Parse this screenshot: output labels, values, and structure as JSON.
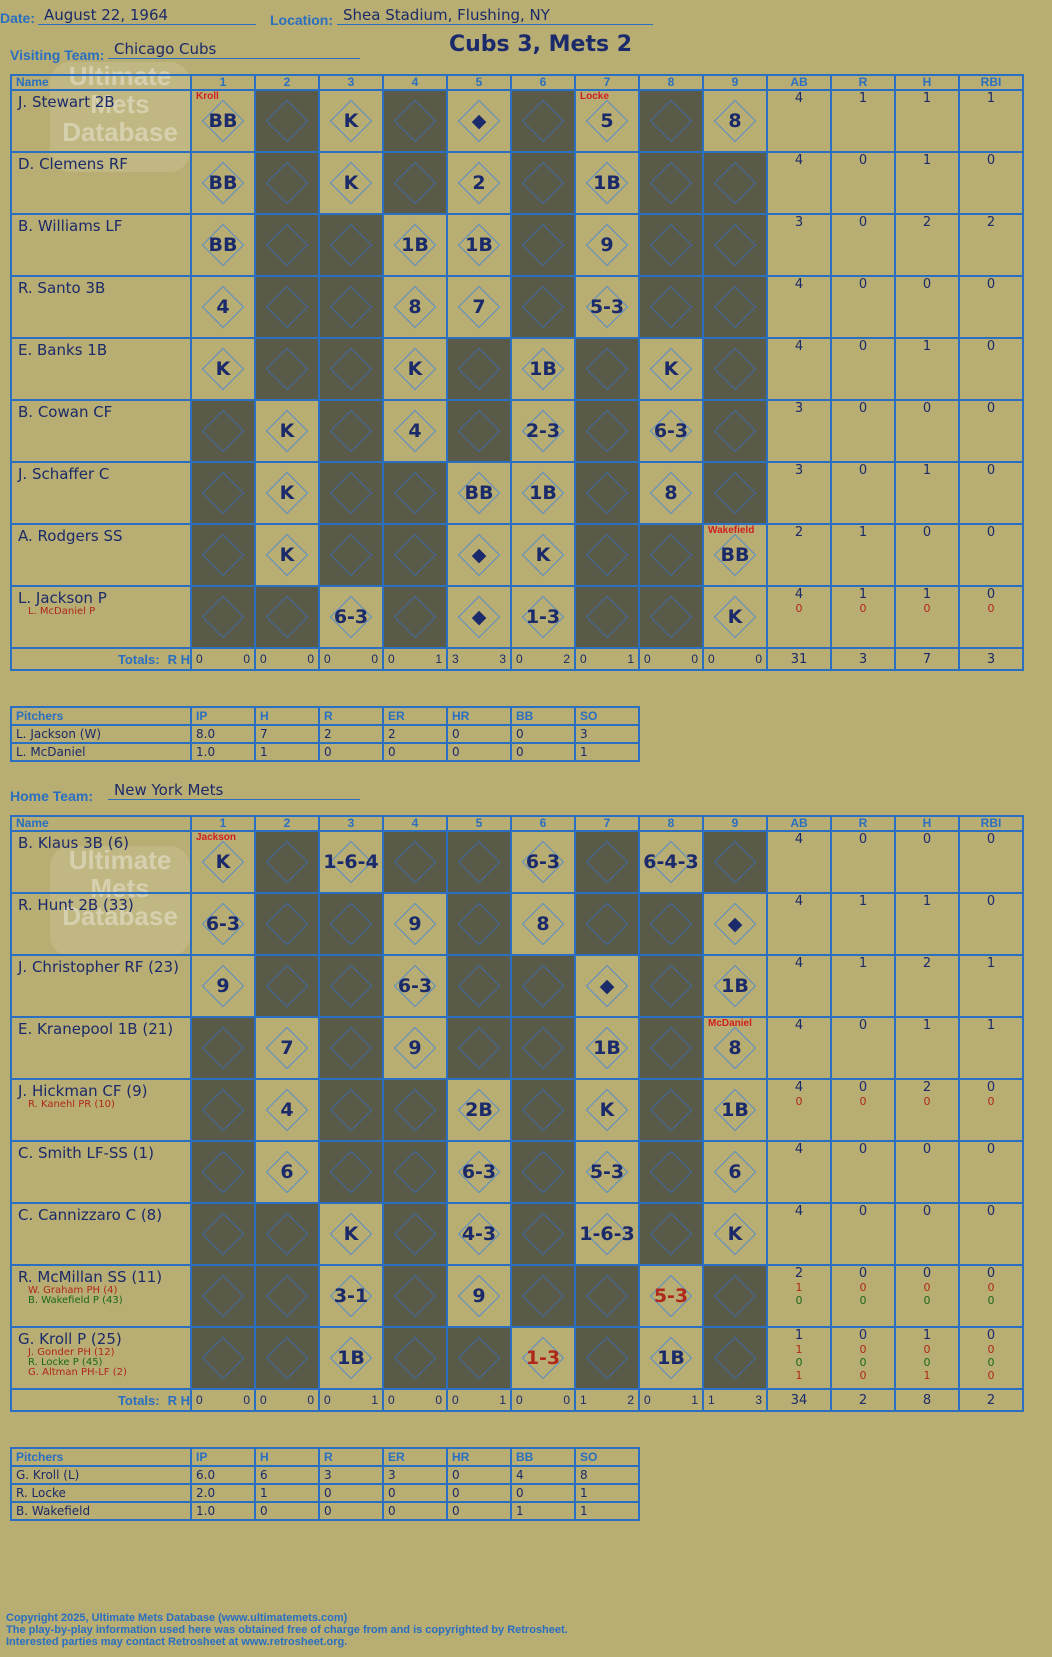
{
  "header": {
    "date_label": "Date:",
    "date": "August 22, 1964",
    "location_label": "Location:",
    "location": "Shea Stadium, Flushing, NY",
    "title": "Cubs 3, Mets 2"
  },
  "visitors": {
    "team_label": "Visiting Team:",
    "team": "Chicago Cubs",
    "columns": [
      "Name",
      "1",
      "2",
      "3",
      "4",
      "5",
      "6",
      "7",
      "8",
      "9",
      "AB",
      "R",
      "H",
      "RBI"
    ],
    "rows": [
      {
        "name": "J. Stewart 2B",
        "subs": [],
        "cells": [
          [
            "BB",
            0,
            "Kroll"
          ],
          [
            "",
            1
          ],
          [
            "K",
            0
          ],
          [
            "",
            1
          ],
          [
            "◆",
            0
          ],
          [
            "",
            1
          ],
          [
            "5",
            0,
            "Locke"
          ],
          [
            "",
            1
          ],
          [
            "8",
            0
          ]
        ],
        "ab": "4",
        "r": "1",
        "h": "1",
        "rbi": "1"
      },
      {
        "name": "D. Clemens RF",
        "subs": [],
        "cells": [
          [
            "BB",
            0
          ],
          [
            "",
            1
          ],
          [
            "K",
            0
          ],
          [
            "",
            1
          ],
          [
            "2",
            0
          ],
          [
            "",
            1
          ],
          [
            "1B",
            0
          ],
          [
            "",
            1
          ],
          [
            "",
            1
          ]
        ],
        "ab": "4",
        "r": "0",
        "h": "1",
        "rbi": "0"
      },
      {
        "name": "B. Williams LF",
        "subs": [],
        "cells": [
          [
            "BB",
            0
          ],
          [
            "",
            1
          ],
          [
            "",
            1
          ],
          [
            "1B",
            0
          ],
          [
            "1B",
            0
          ],
          [
            "",
            1
          ],
          [
            "9",
            0
          ],
          [
            "",
            1
          ],
          [
            "",
            1
          ]
        ],
        "ab": "3",
        "r": "0",
        "h": "2",
        "rbi": "2"
      },
      {
        "name": "R. Santo 3B",
        "subs": [],
        "cells": [
          [
            "4",
            0
          ],
          [
            "",
            1
          ],
          [
            "",
            1
          ],
          [
            "8",
            0
          ],
          [
            "7",
            0
          ],
          [
            "",
            1
          ],
          [
            "5-3",
            0
          ],
          [
            "",
            1
          ],
          [
            "",
            1
          ]
        ],
        "ab": "4",
        "r": "0",
        "h": "0",
        "rbi": "0"
      },
      {
        "name": "E. Banks 1B",
        "subs": [],
        "cells": [
          [
            "K",
            0
          ],
          [
            "",
            1
          ],
          [
            "",
            1
          ],
          [
            "K",
            0
          ],
          [
            "",
            1
          ],
          [
            "1B",
            0
          ],
          [
            "",
            1
          ],
          [
            "K",
            0
          ],
          [
            "",
            1
          ]
        ],
        "ab": "4",
        "r": "0",
        "h": "1",
        "rbi": "0"
      },
      {
        "name": "B. Cowan CF",
        "subs": [],
        "cells": [
          [
            "",
            1
          ],
          [
            "K",
            0
          ],
          [
            "",
            1
          ],
          [
            "4",
            0
          ],
          [
            "",
            1
          ],
          [
            "2-3",
            0
          ],
          [
            "",
            1
          ],
          [
            "6-3",
            0
          ],
          [
            "",
            1
          ]
        ],
        "ab": "3",
        "r": "0",
        "h": "0",
        "rbi": "0"
      },
      {
        "name": "J. Schaffer C",
        "subs": [],
        "cells": [
          [
            "",
            1
          ],
          [
            "K",
            0
          ],
          [
            "",
            1
          ],
          [
            "",
            1
          ],
          [
            "BB",
            0
          ],
          [
            "1B",
            0
          ],
          [
            "",
            1
          ],
          [
            "8",
            0
          ],
          [
            "",
            1
          ]
        ],
        "ab": "3",
        "r": "0",
        "h": "1",
        "rbi": "0"
      },
      {
        "name": "A. Rodgers SS",
        "subs": [],
        "cells": [
          [
            "",
            1
          ],
          [
            "K",
            0
          ],
          [
            "",
            1
          ],
          [
            "",
            1
          ],
          [
            "◆",
            0
          ],
          [
            "K",
            0
          ],
          [
            "",
            1
          ],
          [
            "",
            1
          ],
          [
            "BB",
            0,
            "Wakefield"
          ]
        ],
        "ab": "2",
        "r": "1",
        "h": "0",
        "rbi": "0"
      },
      {
        "name": "L. Jackson P",
        "subs": [
          {
            "name": "L. McDaniel P",
            "ab": "0",
            "r": "0",
            "h": "0",
            "rbi": "0",
            "c": "red"
          }
        ],
        "cells": [
          [
            "",
            1
          ],
          [
            "",
            1
          ],
          [
            "6-3",
            0
          ],
          [
            "",
            1
          ],
          [
            "◆",
            0
          ],
          [
            "1-3",
            0
          ],
          [
            "",
            1
          ],
          [
            "",
            1
          ],
          [
            "K",
            0
          ]
        ],
        "ab": "4",
        "r": "1",
        "h": "1",
        "rbi": "0"
      }
    ],
    "totals_label": "Totals:",
    "totals_rh": "R      H",
    "totals": [
      [
        "0",
        "0"
      ],
      [
        "0",
        "0"
      ],
      [
        "0",
        "0"
      ],
      [
        "0",
        "1"
      ],
      [
        "3",
        "3"
      ],
      [
        "0",
        "2"
      ],
      [
        "0",
        "1"
      ],
      [
        "0",
        "0"
      ],
      [
        "0",
        "0"
      ]
    ],
    "totals_stats": [
      "31",
      "3",
      "7",
      "3"
    ],
    "pitchers_header": [
      "Pitchers",
      "IP",
      "H",
      "R",
      "ER",
      "HR",
      "BB",
      "SO"
    ],
    "pitchers": [
      [
        "L. Jackson (W)",
        "8.0",
        "7",
        "2",
        "2",
        "0",
        "0",
        "3"
      ],
      [
        "L. McDaniel",
        "1.0",
        "1",
        "0",
        "0",
        "0",
        "0",
        "1"
      ]
    ]
  },
  "home": {
    "team_label": "Home Team:",
    "team": "New York Mets",
    "columns": [
      "Name",
      "1",
      "2",
      "3",
      "4",
      "5",
      "6",
      "7",
      "8",
      "9",
      "AB",
      "R",
      "H",
      "RBI"
    ],
    "rows": [
      {
        "name": "B. Klaus 3B (6)",
        "subs": [],
        "cells": [
          [
            "K",
            0,
            "Jackson"
          ],
          [
            "",
            1
          ],
          [
            "1-6-4",
            0
          ],
          [
            "",
            1
          ],
          [
            "",
            1
          ],
          [
            "6-3",
            0
          ],
          [
            "",
            1
          ],
          [
            "6-4-3",
            0
          ],
          [
            "",
            1
          ]
        ],
        "ab": "4",
        "r": "0",
        "h": "0",
        "rbi": "0"
      },
      {
        "name": "R. Hunt 2B (33)",
        "subs": [],
        "cells": [
          [
            "6-3",
            0
          ],
          [
            "",
            1
          ],
          [
            "",
            1
          ],
          [
            "9",
            0
          ],
          [
            "",
            1
          ],
          [
            "8",
            0
          ],
          [
            "",
            1
          ],
          [
            "",
            1
          ],
          [
            "◆",
            0
          ]
        ],
        "ab": "4",
        "r": "1",
        "h": "1",
        "rbi": "0"
      },
      {
        "name": "J. Christopher RF (23)",
        "subs": [],
        "cells": [
          [
            "9",
            0
          ],
          [
            "",
            1
          ],
          [
            "",
            1
          ],
          [
            "6-3",
            0
          ],
          [
            "",
            1
          ],
          [
            "",
            1
          ],
          [
            "◆",
            0
          ],
          [
            "",
            1
          ],
          [
            "1B",
            0
          ]
        ],
        "ab": "4",
        "r": "1",
        "h": "2",
        "rbi": "1"
      },
      {
        "name": "E. Kranepool 1B (21)",
        "subs": [],
        "cells": [
          [
            "",
            1
          ],
          [
            "7",
            0
          ],
          [
            "",
            1
          ],
          [
            "9",
            0
          ],
          [
            "",
            1
          ],
          [
            "",
            1
          ],
          [
            "1B",
            0
          ],
          [
            "",
            1
          ],
          [
            "8",
            0,
            "McDaniel"
          ]
        ],
        "ab": "4",
        "r": "0",
        "h": "1",
        "rbi": "1"
      },
      {
        "name": "J. Hickman CF (9)",
        "subs": [
          {
            "name": "R. Kanehl PR (10)",
            "ab": "0",
            "r": "0",
            "h": "0",
            "rbi": "0",
            "c": "red"
          }
        ],
        "cells": [
          [
            "",
            1
          ],
          [
            "4",
            0
          ],
          [
            "",
            1
          ],
          [
            "",
            1
          ],
          [
            "2B",
            0
          ],
          [
            "",
            1
          ],
          [
            "K",
            0
          ],
          [
            "",
            1
          ],
          [
            "1B",
            0
          ]
        ],
        "ab": "4",
        "r": "0",
        "h": "2",
        "rbi": "0"
      },
      {
        "name": "C. Smith LF-SS (1)",
        "subs": [],
        "cells": [
          [
            "",
            1
          ],
          [
            "6",
            0
          ],
          [
            "",
            1
          ],
          [
            "",
            1
          ],
          [
            "6-3",
            0
          ],
          [
            "",
            1
          ],
          [
            "5-3",
            0
          ],
          [
            "",
            1
          ],
          [
            "6",
            0
          ]
        ],
        "ab": "4",
        "r": "0",
        "h": "0",
        "rbi": "0"
      },
      {
        "name": "C. Cannizzaro C (8)",
        "subs": [],
        "cells": [
          [
            "",
            1
          ],
          [
            "",
            1
          ],
          [
            "K",
            0
          ],
          [
            "",
            1
          ],
          [
            "4-3",
            0
          ],
          [
            "",
            1
          ],
          [
            "1-6-3",
            0
          ],
          [
            "",
            1
          ],
          [
            "K",
            0
          ]
        ],
        "ab": "4",
        "r": "0",
        "h": "0",
        "rbi": "0"
      },
      {
        "name": "R. McMillan SS (11)",
        "subs": [
          {
            "name": "W. Graham PH (4)",
            "ab": "1",
            "r": "0",
            "h": "0",
            "rbi": "0",
            "c": "red"
          },
          {
            "name": "B. Wakefield P (43)",
            "ab": "0",
            "r": "0",
            "h": "0",
            "rbi": "0",
            "c": "grn"
          }
        ],
        "cells": [
          [
            "",
            1
          ],
          [
            "",
            1
          ],
          [
            "3-1",
            0
          ],
          [
            "",
            1
          ],
          [
            "9",
            0
          ],
          [
            "",
            1
          ],
          [
            "",
            1
          ],
          [
            "5-3",
            0,
            null,
            "red"
          ],
          [
            "",
            1
          ]
        ],
        "ab": "2",
        "r": "0",
        "h": "0",
        "rbi": "0"
      },
      {
        "name": "G. Kroll P (25)",
        "subs": [
          {
            "name": "J. Gonder PH (12)",
            "ab": "1",
            "r": "0",
            "h": "0",
            "rbi": "0",
            "c": "red"
          },
          {
            "name": "R. Locke P (45)",
            "ab": "0",
            "r": "0",
            "h": "0",
            "rbi": "0",
            "c": "grn"
          },
          {
            "name": "G. Altman PH-LF (2)",
            "ab": "1",
            "r": "0",
            "h": "1",
            "rbi": "0",
            "c": "red"
          }
        ],
        "cells": [
          [
            "",
            1
          ],
          [
            "",
            1
          ],
          [
            "1B",
            0
          ],
          [
            "",
            1
          ],
          [
            "",
            1
          ],
          [
            "1-3",
            0,
            null,
            "red"
          ],
          [
            "",
            1
          ],
          [
            "1B",
            0
          ],
          [
            "",
            1
          ]
        ],
        "ab": "1",
        "r": "0",
        "h": "1",
        "rbi": "0"
      }
    ],
    "totals_label": "Totals:",
    "totals_rh": "R      H",
    "totals": [
      [
        "0",
        "0"
      ],
      [
        "0",
        "0"
      ],
      [
        "0",
        "1"
      ],
      [
        "0",
        "0"
      ],
      [
        "0",
        "1"
      ],
      [
        "0",
        "0"
      ],
      [
        "1",
        "2"
      ],
      [
        "0",
        "1"
      ],
      [
        "1",
        "3"
      ]
    ],
    "totals_stats": [
      "34",
      "2",
      "8",
      "2"
    ],
    "pitchers_header": [
      "Pitchers",
      "IP",
      "H",
      "R",
      "ER",
      "HR",
      "BB",
      "SO"
    ],
    "pitchers": [
      [
        "G. Kroll (L)",
        "6.0",
        "6",
        "3",
        "3",
        "0",
        "4",
        "8"
      ],
      [
        "R. Locke",
        "2.0",
        "1",
        "0",
        "0",
        "0",
        "0",
        "1"
      ],
      [
        "B. Wakefield",
        "1.0",
        "0",
        "0",
        "0",
        "0",
        "1",
        "1"
      ]
    ]
  },
  "watermark": "Ultimate Mets Database",
  "footer": [
    "Copyright 2025, Ultimate Mets Database (www.ultimatemets.com)",
    "  The play-by-play information used here was obtained free of charge from and is copyrighted by Retrosheet.",
    "  Interested parties may contact Retrosheet at www.retrosheet.org."
  ]
}
